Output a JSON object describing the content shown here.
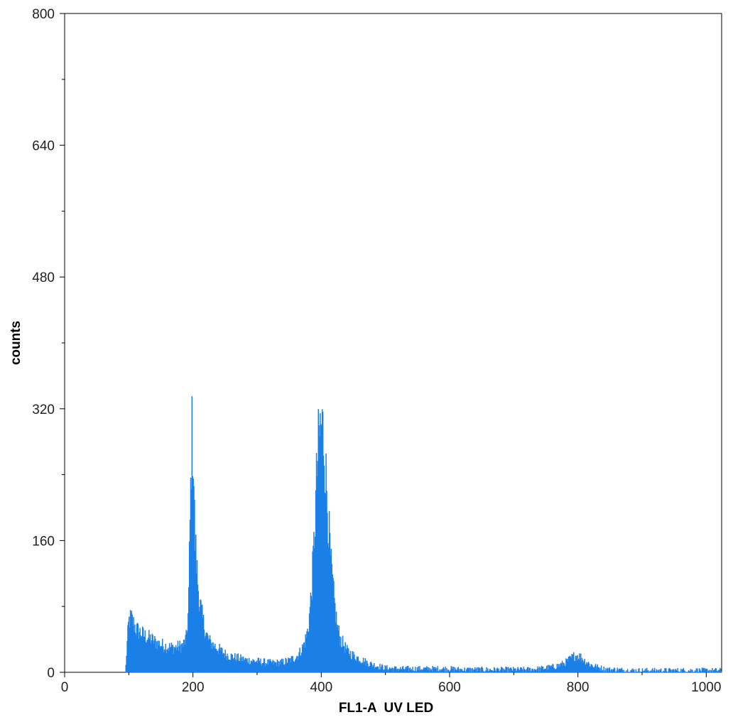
{
  "chart_data": {
    "type": "area",
    "title": "",
    "xlabel": "FL1-A  UV LED",
    "ylabel": "counts",
    "xlim": [
      0,
      1024
    ],
    "ylim": [
      0,
      800
    ],
    "x_ticks": [
      "0",
      "200",
      "400",
      "600",
      "800",
      "1000"
    ],
    "y_ticks": [
      "0",
      "160",
      "320",
      "480",
      "640",
      "800"
    ],
    "x_tick_values": [
      0,
      200,
      400,
      600,
      800,
      1000
    ],
    "y_tick_values": [
      0,
      160,
      320,
      480,
      640,
      800
    ],
    "x_minor_step": 100,
    "y_minor_step": 80,
    "grid": false,
    "legend": "none",
    "color": "#1a7fe6",
    "series": [
      {
        "x": [
          95,
          97,
          100,
          104,
          108,
          112,
          118,
          125,
          135,
          145,
          155,
          165,
          175,
          185,
          190,
          193,
          195,
          197,
          198,
          199,
          200,
          201,
          202,
          203,
          205,
          207,
          210,
          215,
          220,
          225,
          230,
          240,
          250,
          260,
          270,
          280,
          290,
          300,
          310,
          320,
          330,
          340,
          350,
          360,
          365,
          370,
          375,
          380,
          385,
          390,
          393,
          396,
          398,
          400,
          402,
          404,
          406,
          410,
          415,
          420,
          425,
          430,
          440,
          450,
          460,
          470,
          480,
          490,
          500,
          520,
          540,
          560,
          580,
          600,
          620,
          640,
          660,
          680,
          700,
          720,
          740,
          760,
          770,
          780,
          790,
          795,
          800,
          805,
          810,
          820,
          830,
          840,
          850,
          860,
          880,
          900,
          920,
          940,
          960,
          980,
          1000,
          1010,
          1024
        ],
        "y": [
          0,
          30,
          62,
          66,
          58,
          52,
          48,
          44,
          40,
          35,
          32,
          30,
          30,
          33,
          42,
          75,
          160,
          240,
          285,
          292,
          270,
          250,
          210,
          165,
          140,
          115,
          88,
          65,
          48,
          38,
          34,
          28,
          22,
          19,
          17,
          15,
          14,
          13,
          12,
          11,
          11,
          12,
          14,
          18,
          22,
          28,
          38,
          55,
          100,
          175,
          240,
          278,
          292,
          300,
          296,
          282,
          255,
          200,
          130,
          88,
          55,
          40,
          26,
          20,
          16,
          12,
          9,
          7,
          5,
          4,
          4,
          4,
          4,
          4,
          3,
          3,
          3,
          3,
          3,
          3,
          4,
          6,
          8,
          11,
          17,
          20,
          20,
          18,
          14,
          9,
          6,
          4,
          3,
          3,
          2,
          2,
          2,
          2,
          2,
          2,
          2,
          2,
          2
        ]
      }
    ]
  }
}
